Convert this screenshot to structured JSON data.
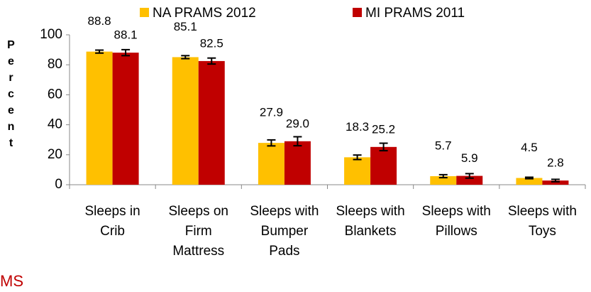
{
  "chart_data": {
    "type": "bar",
    "y_label": "Percent",
    "annotation": "MS",
    "categories": [
      "Sleeps in Crib",
      "Sleeps on Firm Mattress",
      "Sleeps with Bumper Pads",
      "Sleeps with Blankets",
      "Sleeps with Pillows",
      "Sleeps with Toys"
    ],
    "series": [
      {
        "name": "NA PRAMS 2012",
        "color": "#ffc000",
        "values": [
          88.8,
          85.1,
          27.9,
          18.3,
          5.7,
          4.5
        ],
        "errors": [
          1,
          1,
          2,
          1.5,
          1,
          0.5
        ]
      },
      {
        "name": "MI PRAMS 2011",
        "color": "#c00000",
        "values": [
          88.1,
          82.5,
          29,
          25.2,
          5.9,
          2.8
        ],
        "value_labels": [
          "88.1",
          "82.5",
          "29.0",
          "25.2",
          "5.9",
          "2.8"
        ],
        "errors": [
          2,
          2,
          3,
          2.5,
          1.5,
          0.8
        ]
      }
    ],
    "ylim": [
      0,
      100
    ],
    "yticks": [
      0,
      20,
      40,
      60,
      80,
      100
    ],
    "legend": "top"
  }
}
